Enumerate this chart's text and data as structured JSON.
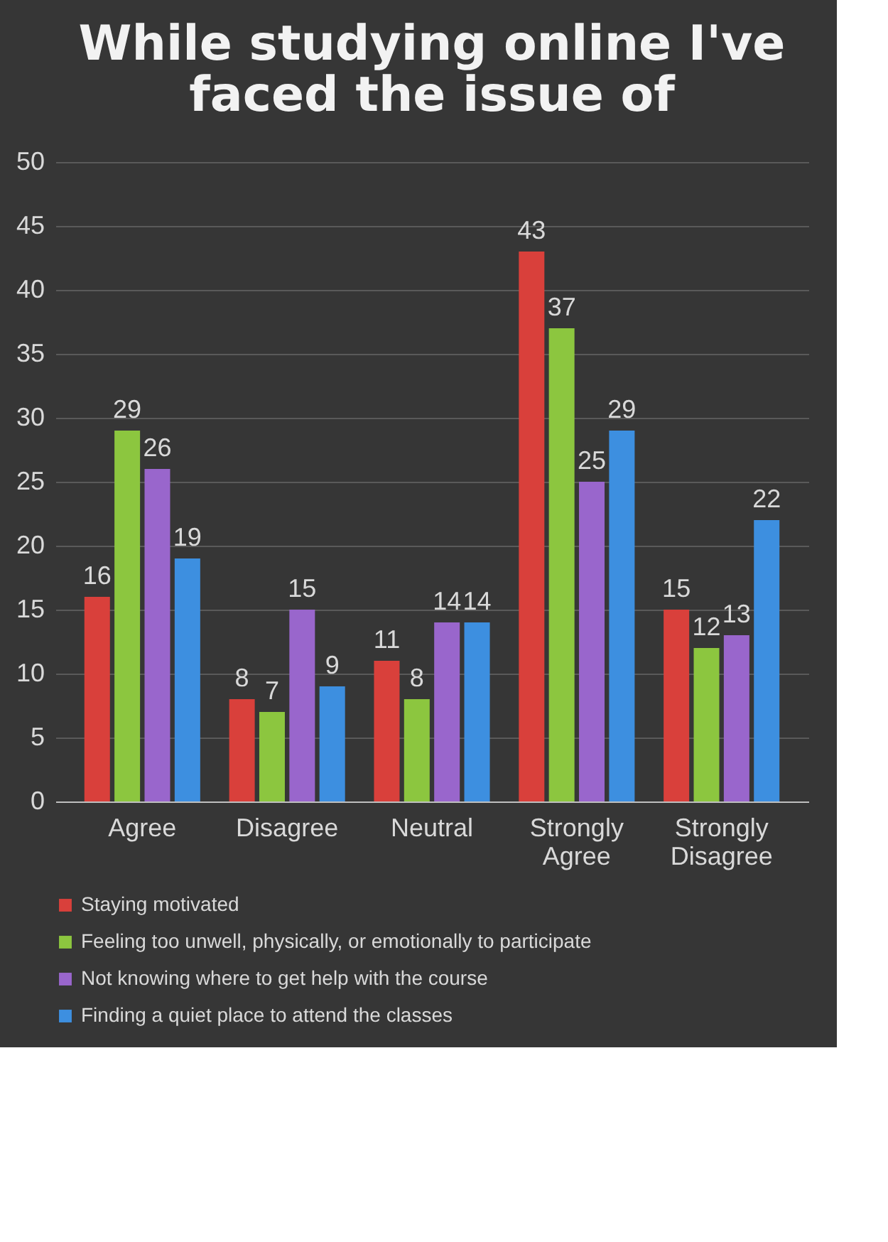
{
  "chart_data": {
    "type": "bar",
    "title": "While studying online I've faced the issue of",
    "categories": [
      "Agree",
      "Disagree",
      "Neutral",
      "Strongly Agree",
      "Strongly Disagree"
    ],
    "series": [
      {
        "name": "Staying motivated",
        "color": "#d9403b",
        "values": [
          16,
          8,
          11,
          43,
          15
        ]
      },
      {
        "name": "Feeling too unwell, physically, or emotionally to participate",
        "color": "#8cc63f",
        "values": [
          29,
          7,
          8,
          37,
          12
        ]
      },
      {
        "name": "Not knowing where to get help with the course",
        "color": "#9966cc",
        "values": [
          26,
          15,
          14,
          25,
          13
        ]
      },
      {
        "name": "Finding a quiet place to attend the classes",
        "color": "#3d8fe0",
        "values": [
          19,
          9,
          14,
          29,
          22
        ]
      }
    ],
    "ylim": [
      0,
      50
    ],
    "yticks": [
      0,
      5,
      10,
      15,
      20,
      25,
      30,
      35,
      40,
      45,
      50
    ],
    "grid": "y",
    "legend": "bottom",
    "data_labels": true
  }
}
